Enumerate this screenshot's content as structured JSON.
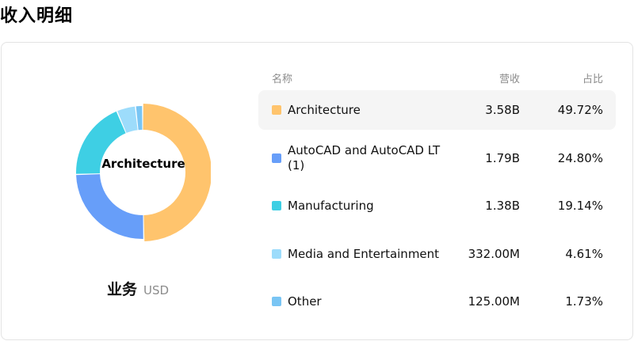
{
  "page": {
    "title": "收入明细"
  },
  "segment": {
    "name": "业务",
    "currency": "USD"
  },
  "table": {
    "headers": {
      "name": "名称",
      "revenue": "营收",
      "share": "占比"
    },
    "rows": [
      {
        "name": "Architecture",
        "revenue": "3.58B",
        "share": "49.72%",
        "value": 49.72,
        "color": "#ffc46d",
        "active": true
      },
      {
        "name": "AutoCAD and AutoCAD LT (1)",
        "revenue": "1.79B",
        "share": "24.80%",
        "value": 24.8,
        "color": "#679ef9",
        "active": false
      },
      {
        "name": "Manufacturing",
        "revenue": "1.38B",
        "share": "19.14%",
        "value": 19.14,
        "color": "#3ecfe4",
        "active": false
      },
      {
        "name": "Media and Entertainment",
        "revenue": "332.00M",
        "share": "4.61%",
        "value": 4.61,
        "color": "#9ddcfb",
        "active": false
      },
      {
        "name": "Other",
        "revenue": "125.00M",
        "share": "1.73%",
        "value": 1.73,
        "color": "#79c5f4",
        "active": false
      }
    ]
  },
  "chart_data": {
    "type": "pie",
    "center_label": "Architecture",
    "categories": [
      "Architecture",
      "AutoCAD and AutoCAD LT (1)",
      "Manufacturing",
      "Media and Entertainment",
      "Other"
    ],
    "values": [
      49.72,
      24.8,
      19.14,
      4.61,
      1.73
    ],
    "colors": [
      "#ffc46d",
      "#679ef9",
      "#3ecfe4",
      "#9ddcfb",
      "#79c5f4"
    ],
    "highlighted": "Architecture"
  }
}
